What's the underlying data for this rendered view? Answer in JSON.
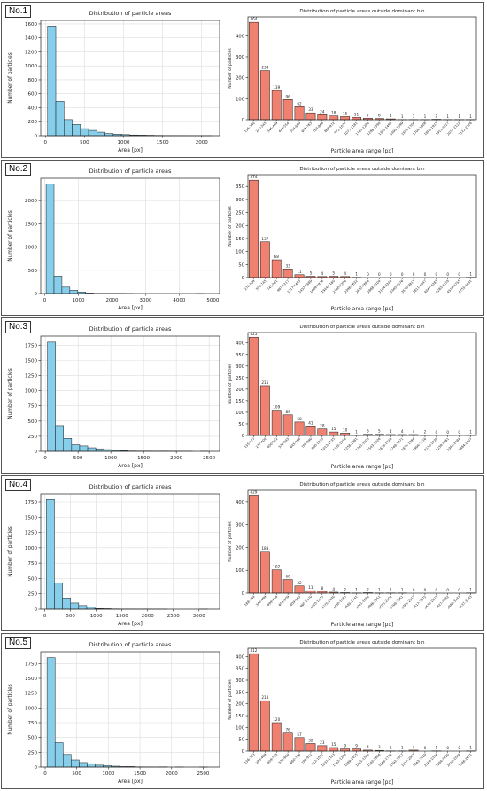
{
  "chart_data": [
    {
      "panel_label": "No.1",
      "hist": {
        "type": "bar",
        "title": "Distribution of particle areas",
        "xlabel": "Area [px]",
        "ylabel": "Number of particles",
        "bar_color": "#87ceeb",
        "xticks": [
          0,
          500,
          1000,
          1500,
          2000
        ],
        "yticks": [
          0,
          200,
          400,
          600,
          800,
          1000,
          1200,
          1400,
          1600
        ],
        "xlim": [
          -60,
          2230
        ],
        "ylim": [
          0,
          1650
        ],
        "bin_width": 105,
        "bin_start": 28,
        "values": [
          1570,
          490,
          230,
          160,
          100,
          75,
          50,
          30,
          22,
          15,
          10,
          8,
          6,
          4,
          3,
          2,
          2,
          1,
          1,
          1
        ]
      },
      "bar": {
        "type": "bar",
        "title": "Distribution of particle areas outside dominant bin",
        "xlabel": "Particle area range [px]",
        "ylabel": "Number of particles",
        "bar_color": "#f08070",
        "ylim": [
          0,
          490
        ],
        "yticks": [
          0,
          100,
          200,
          300,
          400
        ],
        "categories": [
          "136-240",
          "240-345",
          "345-449",
          "449-554",
          "554-659",
          "659-763",
          "763-868",
          "868-972",
          "972-1077",
          "1077-1181",
          "1181-1286",
          "1286-1390",
          "1390-1495",
          "1495-1599",
          "1599-1704",
          "1704-1808",
          "1808-1913",
          "1913-2017",
          "2017-2122",
          "2122-2226"
        ],
        "values": [
          464,
          234,
          139,
          96,
          62,
          33,
          24,
          18,
          15,
          11,
          7,
          6,
          4,
          1,
          1,
          1,
          2,
          1,
          1,
          1
        ]
      }
    },
    {
      "panel_label": "No.2",
      "hist": {
        "type": "bar",
        "title": "Distribution of particle areas",
        "xlabel": "Area [px]",
        "ylabel": "Number of particles",
        "bar_color": "#87ceeb",
        "xticks": [
          0,
          1000,
          2000,
          3000,
          4000,
          5000
        ],
        "yticks": [
          0,
          500,
          1000,
          1500,
          2000
        ],
        "xlim": [
          -120,
          5200
        ],
        "ylim": [
          0,
          2480
        ],
        "bin_width": 235,
        "bin_start": 40,
        "values": [
          2360,
          374,
          137,
          68,
          33,
          11,
          5,
          4,
          5,
          4,
          1,
          0,
          0,
          0,
          0,
          0,
          0,
          0,
          0,
          1
        ]
      },
      "bar": {
        "type": "bar",
        "title": "Distribution of particle areas outside dominant bin",
        "xlabel": "Particle area range [px]",
        "ylabel": "Number of particles",
        "bar_color": "#f08070",
        "ylim": [
          0,
          395
        ],
        "yticks": [
          0,
          50,
          100,
          150,
          200,
          250,
          300,
          350
        ],
        "categories": [
          "274-509",
          "509-745",
          "745-981",
          "981-1217",
          "1217-1453",
          "1453-1689",
          "1689-1924",
          "1924-2160",
          "2160-2396",
          "2396-2632",
          "2632-2868",
          "2868-3104",
          "3104-3340",
          "3340-3576",
          "3576-3811",
          "3811-4047",
          "4047-4283",
          "4283-4519",
          "4519-4755",
          "4755-4991"
        ],
        "values": [
          374,
          137,
          68,
          33,
          11,
          5,
          4,
          5,
          4,
          1,
          0,
          0,
          0,
          0,
          0,
          0,
          0,
          0,
          0,
          1
        ]
      }
    },
    {
      "panel_label": "No.3",
      "hist": {
        "type": "bar",
        "title": "Distribution of particle areas",
        "xlabel": "Area [px]",
        "ylabel": "Number of particles",
        "bar_color": "#87ceeb",
        "xticks": [
          0,
          500,
          1000,
          1500,
          2000,
          2500
        ],
        "yticks": [
          0,
          250,
          500,
          750,
          1000,
          1250,
          1500,
          1750
        ],
        "xlim": [
          -70,
          2660
        ],
        "ylim": [
          0,
          1900
        ],
        "bin_width": 123,
        "bin_start": 32,
        "values": [
          1800,
          425,
          215,
          109,
          89,
          58,
          41,
          28,
          15,
          10,
          5,
          4,
          4,
          3,
          4,
          2,
          1,
          1,
          0,
          1
        ]
      },
      "bar": {
        "type": "bar",
        "title": "Distribution of particle areas outside dominant bin",
        "xlabel": "Particle area range [px]",
        "ylabel": "Number of particles",
        "bar_color": "#f08070",
        "ylim": [
          0,
          445
        ],
        "yticks": [
          0,
          50,
          100,
          150,
          200,
          250,
          300,
          350,
          400
        ],
        "categories": [
          "155-277",
          "277-400",
          "400-522",
          "522-645",
          "645-768",
          "768-890",
          "890-1013",
          "1013-1135",
          "1135-1258",
          "1258-1381",
          "1381-1503",
          "1503-1626",
          "1626-1748",
          "1748-1871",
          "1871-1994",
          "1994-2116",
          "2116-2239",
          "2239-2361",
          "2361-2484",
          "2484-2607"
        ],
        "values": [
          425,
          215,
          109,
          89,
          58,
          41,
          28,
          15,
          10,
          1,
          5,
          5,
          4,
          4,
          4,
          2,
          0,
          0,
          0,
          1
        ]
      }
    },
    {
      "panel_label": "No.4",
      "hist": {
        "type": "bar",
        "title": "Distribution of particle areas",
        "xlabel": "Area [px]",
        "ylabel": "Number of particles",
        "bar_color": "#87ceeb",
        "xticks": [
          0,
          500,
          1000,
          1500,
          2000,
          2500,
          3000
        ],
        "yticks": [
          0,
          250,
          500,
          750,
          1000,
          1250,
          1500,
          1750
        ],
        "xlim": [
          -80,
          3400
        ],
        "ylim": [
          0,
          1880
        ],
        "bin_width": 157,
        "bin_start": 30,
        "values": [
          1790,
          429,
          183,
          102,
          60,
          32,
          11,
          8,
          4,
          2,
          2,
          1,
          2,
          1,
          1,
          0,
          0,
          0,
          0,
          1
        ]
      },
      "bar": {
        "type": "bar",
        "title": "Distribution of particle areas outside dominant bin",
        "xlabel": "Particle area range [px]",
        "ylabel": "Number of particles",
        "bar_color": "#f08070",
        "ylim": [
          0,
          450
        ],
        "yticks": [
          0,
          100,
          200,
          300,
          400
        ],
        "categories": [
          "188-344",
          "344-499",
          "499-654",
          "654-809",
          "809-965",
          "965-1120",
          "1120-1275",
          "1275-1430",
          "1430-1585",
          "1585-1741",
          "1741-1896",
          "1896-2051",
          "2051-2206",
          "2206-2361",
          "2361-2517",
          "2517-2672",
          "2672-2827",
          "2827-2982",
          "2982-3137",
          "3137-3293"
        ],
        "values": [
          429,
          183,
          102,
          60,
          32,
          11,
          8,
          4,
          2,
          1,
          2,
          1,
          1,
          1,
          0,
          0,
          0,
          0,
          0,
          1
        ]
      }
    },
    {
      "panel_label": "No.5",
      "hist": {
        "type": "bar",
        "title": "Distribution of particle areas",
        "xlabel": "Area [px]",
        "ylabel": "Number of particles",
        "bar_color": "#87ceeb",
        "xticks": [
          0,
          500,
          1000,
          1500,
          2000,
          2500
        ],
        "yticks": [
          0,
          250,
          500,
          750,
          1000,
          1250,
          1500,
          1750
        ],
        "xlim": [
          -70,
          2760
        ],
        "ylim": [
          0,
          1950
        ],
        "bin_width": 127,
        "bin_start": 30,
        "values": [
          1850,
          412,
          213,
          120,
          76,
          57,
          32,
          23,
          15,
          9,
          9,
          4,
          3,
          1,
          4,
          0,
          1,
          0,
          0,
          1
        ]
      },
      "bar": {
        "type": "bar",
        "title": "Distribution of particle areas outside dominant bin",
        "xlabel": "Particle area range [px]",
        "ylabel": "Number of particles",
        "bar_color": "#f08070",
        "ylim": [
          0,
          435
        ],
        "yticks": [
          0,
          50,
          100,
          150,
          200,
          250,
          300,
          350,
          400
        ],
        "categories": [
          "156-283",
          "283-409",
          "409-535",
          "535-660",
          "660-786",
          "786-912",
          "912-1037",
          "1037-1163",
          "1163-1289",
          "1289-1415",
          "1415-1540",
          "1540-1666",
          "1666-1792",
          "1792-1917",
          "1917-2043",
          "2043-2169",
          "2169-2294",
          "2294-2420",
          "2420-2546",
          "2546-2671"
        ],
        "values": [
          412,
          213,
          120,
          76,
          57,
          32,
          23,
          15,
          9,
          9,
          4,
          3,
          1,
          1,
          4,
          0,
          1,
          0,
          0,
          1
        ]
      }
    }
  ]
}
